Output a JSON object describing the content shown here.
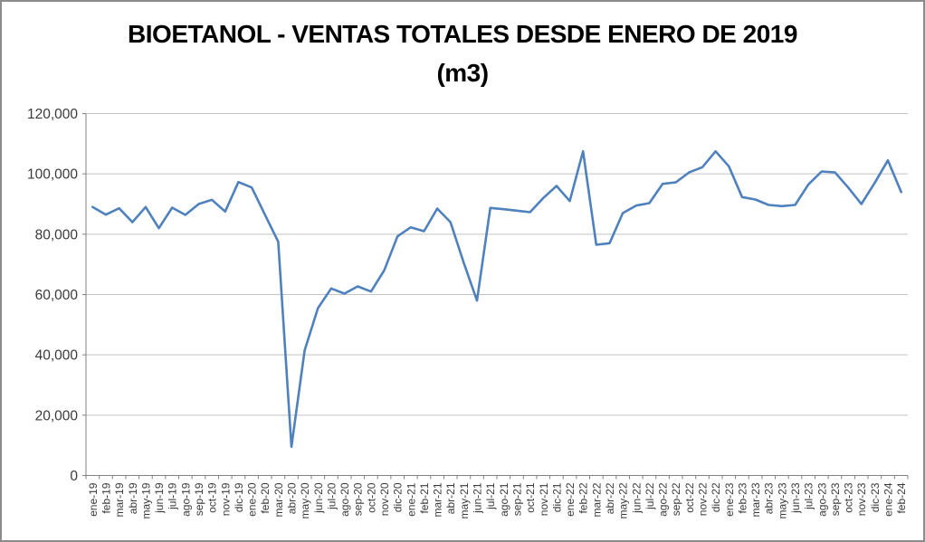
{
  "chart_data": {
    "type": "line",
    "title": "BIOETANOL - VENTAS TOTALES DESDE ENERO DE 2019",
    "subtitle": "(m3)",
    "categories": [
      "ene-19",
      "feb-19",
      "mar-19",
      "abr-19",
      "may-19",
      "jun-19",
      "jul-19",
      "ago-19",
      "sep-19",
      "oct-19",
      "nov-19",
      "dic-19",
      "ene-20",
      "feb-20",
      "mar-20",
      "abr-20",
      "may-20",
      "jun-20",
      "jul-20",
      "ago-20",
      "sep-20",
      "oct-20",
      "nov-20",
      "dic-20",
      "ene-21",
      "feb-21",
      "mar-21",
      "abr-21",
      "may-21",
      "jun-21",
      "jul-21",
      "ago-21",
      "sep-21",
      "oct-21",
      "nov-21",
      "dic-21",
      "ene-22",
      "feb-22",
      "mar-22",
      "abr-22",
      "may-22",
      "jun-22",
      "jul-22",
      "ago-22",
      "sep-22",
      "oct-22",
      "nov-22",
      "dic-22",
      "ene-23",
      "feb-23",
      "mar-23",
      "abr-23",
      "may-23",
      "jun-23",
      "jul-23",
      "ago-23",
      "sep-23",
      "oct-23",
      "nov-23",
      "dic-23",
      "ene-24",
      "feb-24"
    ],
    "values": [
      89000,
      86500,
      88600,
      84000,
      89000,
      82000,
      88800,
      86400,
      90000,
      91400,
      87500,
      97300,
      95500,
      86500,
      77500,
      9500,
      41500,
      55500,
      62000,
      60300,
      62700,
      61000,
      68000,
      79300,
      82300,
      81000,
      88500,
      84000,
      70500,
      58000,
      88700,
      88300,
      87800,
      87300,
      92000,
      96000,
      91000,
      107500,
      76500,
      77000,
      87000,
      89500,
      90300,
      96700,
      97200,
      100500,
      102200,
      107500,
      102500,
      92300,
      91500,
      89700,
      89300,
      89700,
      96500,
      100800,
      100500,
      95500,
      90000,
      97000,
      104500,
      94000
    ],
    "xlabel": "",
    "ylabel": "",
    "ylim": [
      0,
      120000
    ],
    "ytick_interval": 20000,
    "ytick_labels": [
      "0",
      "20,000",
      "40,000",
      "60,000",
      "80,000",
      "100,000",
      "120,000"
    ],
    "grid": true,
    "legend": "none",
    "line_color": "#4F81BD",
    "gridline_color": "#c3c3c3",
    "axis_color": "#808080",
    "label_color": "#3a3a3a"
  }
}
